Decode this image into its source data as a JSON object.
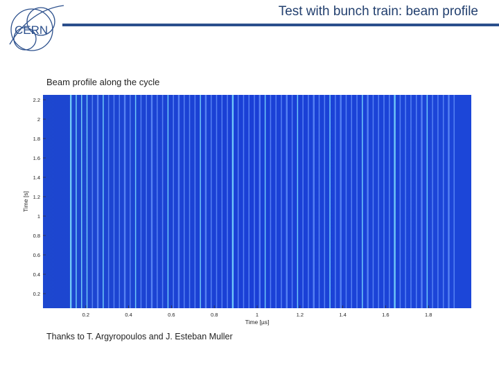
{
  "slide": {
    "title": "Test with bunch train: beam profile",
    "subtitle": "Beam profile along the cycle",
    "credit": "Thanks to T. Argyropoulos and J. Esteban Muller",
    "logo_text": "CERN"
  },
  "colors": {
    "brand_blue": "#2b4f8c",
    "plot_background": "#1a3fd6",
    "stripe_light": "#6f9cff",
    "stripe_cyan": "#7fe0ff"
  },
  "chart_data": {
    "type": "heatmap",
    "title": "",
    "xlabel": "Time [µs]",
    "ylabel": "Time [s]",
    "xlim": [
      0,
      2.0
    ],
    "ylim": [
      0.05,
      2.25
    ],
    "x_ticks": [
      0.2,
      0.4,
      0.6,
      0.8,
      1,
      1.2,
      1.4,
      1.6,
      1.8
    ],
    "x_tick_labels": [
      "0.2",
      "0.4",
      "0.6",
      "0.8",
      "1",
      "1.2",
      "1.4",
      "1.6",
      "1.8"
    ],
    "y_ticks": [
      0.2,
      0.4,
      0.6,
      0.8,
      1,
      1.2,
      1.4,
      1.6,
      1.8,
      2,
      2.2
    ],
    "y_tick_labels": [
      "0.2",
      "0.4",
      "0.6",
      "0.8",
      "1",
      "1.2",
      "1.4",
      "1.6",
      "1.8",
      "2",
      "2.2"
    ],
    "bunch_train": {
      "x_start": 0.13,
      "x_end": 1.92,
      "bunch_count": 72
    },
    "grid": false,
    "legend": "none"
  }
}
